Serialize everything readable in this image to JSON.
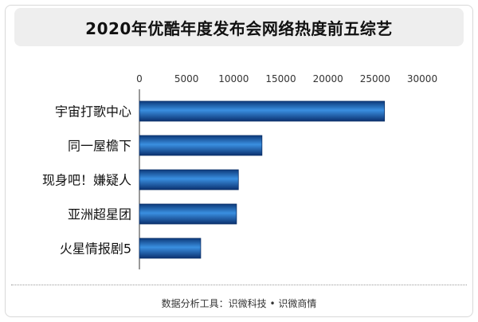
{
  "chart_data": {
    "type": "bar",
    "orientation": "horizontal",
    "title": "2020年优酷年度发布会网络热度前五综艺",
    "categories": [
      "宇宙打歌中心",
      "同一屋檐下",
      "现身吧！嫌疑人",
      "亚洲超星团",
      "火星情报剧5"
    ],
    "values": [
      26000,
      13000,
      10500,
      10300,
      6500
    ],
    "xlim": [
      0,
      30000
    ],
    "xticks": [
      "0",
      "5000",
      "10000",
      "15000",
      "20000",
      "25000",
      "30000"
    ],
    "xtick_values": [
      0,
      5000,
      10000,
      15000,
      20000,
      25000,
      30000
    ],
    "axis_position": "top",
    "bar_color": "#1c5fa8",
    "bar_edge_color": "#0b2f66",
    "grid": false,
    "legend": "none"
  },
  "footer": {
    "source": "数据分析工具：识微科技 • 识微商情"
  }
}
